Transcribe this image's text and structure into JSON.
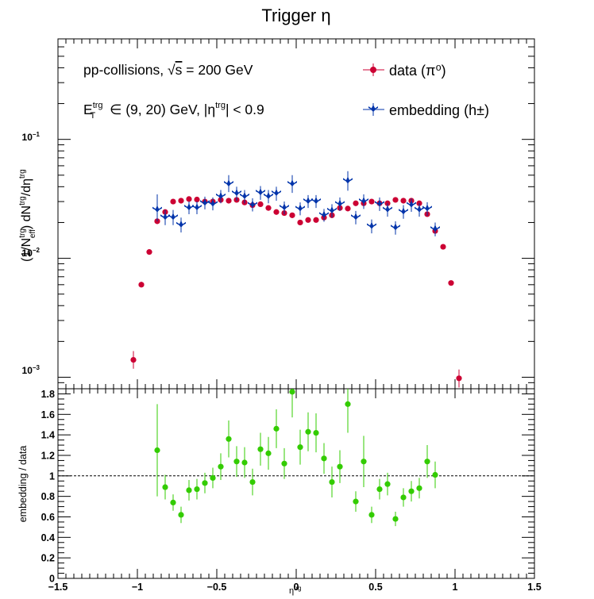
{
  "title": "Trigger η",
  "colors": {
    "data": "#cc0033",
    "embedding": "#0033aa",
    "ratio": "#33cc00",
    "frame": "#000000"
  },
  "annotations": {
    "line1": "pp-collisions, √s = 200 GeV",
    "line2": "E_T^trg ∈ (9, 20) GeV, |η^trg| < 0.9"
  },
  "legend": {
    "placement": "top-right",
    "data_label": "data (π⁰)",
    "embedding_label": "embedding (h±)"
  },
  "chart_data": [
    {
      "type": "scatter",
      "title": "Trigger η",
      "ylabel": "(1/N_eff^trg) dN^trg/dη^trg",
      "yscale": "log",
      "xlim": [
        -1.5,
        1.5
      ],
      "ylim": [
        0.0008,
        0.7
      ],
      "y_tick_labels": [
        "10⁻³",
        "10⁻²",
        "10⁻¹"
      ],
      "series": [
        {
          "name": "data (π⁰)",
          "marker": "circle",
          "points": [
            {
              "x": -1.025,
              "y": 0.0014,
              "lo": 0.00118,
              "hi": 0.00166
            },
            {
              "x": -0.975,
              "y": 0.006,
              "lo": 0.0057,
              "hi": 0.00635
            },
            {
              "x": -0.925,
              "y": 0.0113,
              "lo": 0.0109,
              "hi": 0.0117
            },
            {
              "x": -0.875,
              "y": 0.0205,
              "lo": 0.0195,
              "hi": 0.0215
            },
            {
              "x": -0.825,
              "y": 0.0245,
              "lo": 0.0234,
              "hi": 0.0256
            },
            {
              "x": -0.775,
              "y": 0.03,
              "lo": 0.0289,
              "hi": 0.0311
            },
            {
              "x": -0.725,
              "y": 0.0305,
              "lo": 0.0294,
              "hi": 0.0316
            },
            {
              "x": -0.675,
              "y": 0.0315,
              "lo": 0.0304,
              "hi": 0.0326
            },
            {
              "x": -0.625,
              "y": 0.0312,
              "lo": 0.0301,
              "hi": 0.0323
            },
            {
              "x": -0.575,
              "y": 0.03,
              "lo": 0.0289,
              "hi": 0.0311
            },
            {
              "x": -0.525,
              "y": 0.03,
              "lo": 0.0289,
              "hi": 0.0311
            },
            {
              "x": -0.475,
              "y": 0.031,
              "lo": 0.0299,
              "hi": 0.0321
            },
            {
              "x": -0.425,
              "y": 0.0305,
              "lo": 0.0294,
              "hi": 0.0316
            },
            {
              "x": -0.375,
              "y": 0.031,
              "lo": 0.0299,
              "hi": 0.0321
            },
            {
              "x": -0.325,
              "y": 0.0295,
              "lo": 0.0284,
              "hi": 0.0306
            },
            {
              "x": -0.275,
              "y": 0.028,
              "lo": 0.027,
              "hi": 0.029
            },
            {
              "x": -0.225,
              "y": 0.0285,
              "lo": 0.0275,
              "hi": 0.0295
            },
            {
              "x": -0.175,
              "y": 0.0265,
              "lo": 0.0256,
              "hi": 0.0274
            },
            {
              "x": -0.125,
              "y": 0.0245,
              "lo": 0.0236,
              "hi": 0.0254
            },
            {
              "x": -0.075,
              "y": 0.024,
              "lo": 0.0231,
              "hi": 0.0249
            },
            {
              "x": -0.025,
              "y": 0.023,
              "lo": 0.0222,
              "hi": 0.0238
            },
            {
              "x": 0.025,
              "y": 0.02,
              "lo": 0.0193,
              "hi": 0.0207
            },
            {
              "x": 0.075,
              "y": 0.021,
              "lo": 0.0203,
              "hi": 0.0217
            },
            {
              "x": 0.125,
              "y": 0.021,
              "lo": 0.0203,
              "hi": 0.0217
            },
            {
              "x": 0.175,
              "y": 0.022,
              "lo": 0.0212,
              "hi": 0.0228
            },
            {
              "x": 0.225,
              "y": 0.023,
              "lo": 0.0222,
              "hi": 0.0238
            },
            {
              "x": 0.275,
              "y": 0.0265,
              "lo": 0.0256,
              "hi": 0.0274
            },
            {
              "x": 0.325,
              "y": 0.0262,
              "lo": 0.0253,
              "hi": 0.0271
            },
            {
              "x": 0.375,
              "y": 0.029,
              "lo": 0.028,
              "hi": 0.03
            },
            {
              "x": 0.425,
              "y": 0.029,
              "lo": 0.028,
              "hi": 0.03
            },
            {
              "x": 0.475,
              "y": 0.03,
              "lo": 0.0289,
              "hi": 0.0311
            },
            {
              "x": 0.525,
              "y": 0.029,
              "lo": 0.028,
              "hi": 0.03
            },
            {
              "x": 0.575,
              "y": 0.029,
              "lo": 0.028,
              "hi": 0.03
            },
            {
              "x": 0.625,
              "y": 0.031,
              "lo": 0.0299,
              "hi": 0.0321
            },
            {
              "x": 0.675,
              "y": 0.0305,
              "lo": 0.0294,
              "hi": 0.0316
            },
            {
              "x": 0.725,
              "y": 0.0305,
              "lo": 0.0294,
              "hi": 0.0316
            },
            {
              "x": 0.775,
              "y": 0.029,
              "lo": 0.028,
              "hi": 0.03
            },
            {
              "x": 0.825,
              "y": 0.0235,
              "lo": 0.0226,
              "hi": 0.0244
            },
            {
              "x": 0.875,
              "y": 0.017,
              "lo": 0.0163,
              "hi": 0.0177
            },
            {
              "x": 0.925,
              "y": 0.0125,
              "lo": 0.012,
              "hi": 0.013
            },
            {
              "x": 0.975,
              "y": 0.0062,
              "lo": 0.0059,
              "hi": 0.0065
            },
            {
              "x": 1.025,
              "y": 0.00098,
              "lo": 0.00082,
              "hi": 0.00116
            }
          ]
        },
        {
          "name": "embedding (h±)",
          "marker": "star",
          "points": [
            {
              "x": -0.875,
              "y": 0.0255,
              "lo": 0.0205,
              "hi": 0.0345
            },
            {
              "x": -0.825,
              "y": 0.022,
              "lo": 0.019,
              "hi": 0.0255
            },
            {
              "x": -0.775,
              "y": 0.022,
              "lo": 0.019,
              "hi": 0.0255
            },
            {
              "x": -0.725,
              "y": 0.019,
              "lo": 0.0165,
              "hi": 0.022
            },
            {
              "x": -0.675,
              "y": 0.0265,
              "lo": 0.0235,
              "hi": 0.03
            },
            {
              "x": -0.625,
              "y": 0.0265,
              "lo": 0.0235,
              "hi": 0.03
            },
            {
              "x": -0.575,
              "y": 0.029,
              "lo": 0.0258,
              "hi": 0.033
            },
            {
              "x": -0.525,
              "y": 0.0285,
              "lo": 0.0253,
              "hi": 0.0325
            },
            {
              "x": -0.475,
              "y": 0.033,
              "lo": 0.029,
              "hi": 0.0375
            },
            {
              "x": -0.425,
              "y": 0.042,
              "lo": 0.036,
              "hi": 0.05
            },
            {
              "x": -0.375,
              "y": 0.035,
              "lo": 0.0305,
              "hi": 0.04
            },
            {
              "x": -0.325,
              "y": 0.033,
              "lo": 0.029,
              "hi": 0.0375
            },
            {
              "x": -0.275,
              "y": 0.028,
              "lo": 0.0248,
              "hi": 0.032
            },
            {
              "x": -0.225,
              "y": 0.0355,
              "lo": 0.031,
              "hi": 0.0405
            },
            {
              "x": -0.175,
              "y": 0.033,
              "lo": 0.029,
              "hi": 0.0375
            },
            {
              "x": -0.125,
              "y": 0.035,
              "lo": 0.0305,
              "hi": 0.04
            },
            {
              "x": -0.075,
              "y": 0.0265,
              "lo": 0.0235,
              "hi": 0.03
            },
            {
              "x": -0.025,
              "y": 0.042,
              "lo": 0.0355,
              "hi": 0.05
            },
            {
              "x": 0.025,
              "y": 0.026,
              "lo": 0.023,
              "hi": 0.0295
            },
            {
              "x": 0.075,
              "y": 0.03,
              "lo": 0.0265,
              "hi": 0.034
            },
            {
              "x": 0.125,
              "y": 0.03,
              "lo": 0.0265,
              "hi": 0.034
            },
            {
              "x": 0.175,
              "y": 0.023,
              "lo": 0.0203,
              "hi": 0.026
            },
            {
              "x": 0.225,
              "y": 0.025,
              "lo": 0.022,
              "hi": 0.0285
            },
            {
              "x": 0.275,
              "y": 0.0285,
              "lo": 0.025,
              "hi": 0.0325
            },
            {
              "x": 0.325,
              "y": 0.0445,
              "lo": 0.037,
              "hi": 0.054
            },
            {
              "x": 0.375,
              "y": 0.022,
              "lo": 0.0193,
              "hi": 0.025
            },
            {
              "x": 0.425,
              "y": 0.03,
              "lo": 0.026,
              "hi": 0.0345
            },
            {
              "x": 0.475,
              "y": 0.0185,
              "lo": 0.0162,
              "hi": 0.0212
            },
            {
              "x": 0.525,
              "y": 0.0285,
              "lo": 0.025,
              "hi": 0.0325
            },
            {
              "x": 0.575,
              "y": 0.0255,
              "lo": 0.0224,
              "hi": 0.029
            },
            {
              "x": 0.625,
              "y": 0.018,
              "lo": 0.0158,
              "hi": 0.0205
            },
            {
              "x": 0.675,
              "y": 0.0245,
              "lo": 0.0215,
              "hi": 0.028
            },
            {
              "x": 0.725,
              "y": 0.028,
              "lo": 0.0246,
              "hi": 0.0318
            },
            {
              "x": 0.775,
              "y": 0.0255,
              "lo": 0.0224,
              "hi": 0.029
            },
            {
              "x": 0.825,
              "y": 0.026,
              "lo": 0.0228,
              "hi": 0.0296
            },
            {
              "x": 0.875,
              "y": 0.0175,
              "lo": 0.0153,
              "hi": 0.02
            }
          ]
        }
      ]
    },
    {
      "type": "scatter",
      "xlabel": "η^trg",
      "ylabel": "embedding / data",
      "xlim": [
        -1.5,
        1.5
      ],
      "ylim": [
        0,
        1.85
      ],
      "x_ticks": [
        -1.5,
        -1,
        -0.5,
        0,
        0.5,
        1,
        1.5
      ],
      "x_tick_labels": [
        "−1.5",
        "−1",
        "−0.5",
        "0",
        "0.5",
        "1",
        "1.5"
      ],
      "y_ticks": [
        0,
        0.2,
        0.4,
        0.6,
        0.8,
        1,
        1.2,
        1.4,
        1.6,
        1.8
      ],
      "y_tick_labels": [
        "0",
        "0.2",
        "0.4",
        "0.6",
        "0.8",
        "1",
        "1.2",
        "1.4",
        "1.6",
        "1.8"
      ],
      "reference_line": 1,
      "series": [
        {
          "marker": "circle",
          "points": [
            {
              "x": -0.875,
              "y": 1.25,
              "err": 0.45
            },
            {
              "x": -0.825,
              "y": 0.89,
              "err": 0.12
            },
            {
              "x": -0.775,
              "y": 0.74,
              "err": 0.08
            },
            {
              "x": -0.725,
              "y": 0.62,
              "err": 0.08
            },
            {
              "x": -0.675,
              "y": 0.86,
              "err": 0.1
            },
            {
              "x": -0.625,
              "y": 0.87,
              "err": 0.1
            },
            {
              "x": -0.575,
              "y": 0.93,
              "err": 0.1
            },
            {
              "x": -0.525,
              "y": 0.98,
              "err": 0.1
            },
            {
              "x": -0.475,
              "y": 1.09,
              "err": 0.13
            },
            {
              "x": -0.425,
              "y": 1.36,
              "err": 0.18
            },
            {
              "x": -0.375,
              "y": 1.14,
              "err": 0.15
            },
            {
              "x": -0.325,
              "y": 1.13,
              "err": 0.15
            },
            {
              "x": -0.275,
              "y": 0.94,
              "err": 0.13
            },
            {
              "x": -0.225,
              "y": 1.26,
              "err": 0.16
            },
            {
              "x": -0.175,
              "y": 1.22,
              "err": 0.16
            },
            {
              "x": -0.125,
              "y": 1.46,
              "err": 0.19
            },
            {
              "x": -0.075,
              "y": 1.12,
              "err": 0.15
            },
            {
              "x": -0.025,
              "y": 1.82,
              "err": 0.25
            },
            {
              "x": 0.025,
              "y": 1.28,
              "err": 0.17
            },
            {
              "x": 0.075,
              "y": 1.43,
              "err": 0.19
            },
            {
              "x": 0.125,
              "y": 1.42,
              "err": 0.19
            },
            {
              "x": 0.175,
              "y": 1.17,
              "err": 0.15
            },
            {
              "x": 0.225,
              "y": 0.94,
              "err": 0.15
            },
            {
              "x": 0.275,
              "y": 1.09,
              "err": 0.16
            },
            {
              "x": 0.325,
              "y": 1.7,
              "err": 0.28
            },
            {
              "x": 0.375,
              "y": 0.75,
              "err": 0.1
            },
            {
              "x": 0.425,
              "y": 1.14,
              "err": 0.25
            },
            {
              "x": 0.475,
              "y": 0.62,
              "err": 0.08
            },
            {
              "x": 0.525,
              "y": 0.87,
              "err": 0.1
            },
            {
              "x": 0.575,
              "y": 0.92,
              "err": 0.11
            },
            {
              "x": 0.625,
              "y": 0.58,
              "err": 0.07
            },
            {
              "x": 0.675,
              "y": 0.79,
              "err": 0.09
            },
            {
              "x": 0.725,
              "y": 0.85,
              "err": 0.1
            },
            {
              "x": 0.775,
              "y": 0.88,
              "err": 0.1
            },
            {
              "x": 0.825,
              "y": 1.14,
              "err": 0.16
            },
            {
              "x": 0.875,
              "y": 1.01,
              "err": 0.13
            }
          ]
        }
      ]
    }
  ]
}
